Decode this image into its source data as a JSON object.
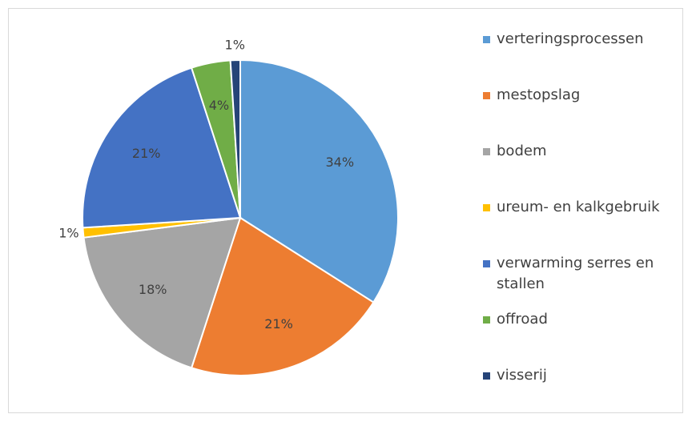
{
  "chart_data": {
    "type": "pie",
    "categories": [
      "verteringsprocessen",
      "mestopslag",
      "bodem",
      "ureum- en kalkgebruik",
      "verwarming serres en stallen",
      "offroad",
      "visserij"
    ],
    "values": [
      34,
      21,
      18,
      1,
      21,
      4,
      1
    ],
    "value_labels": [
      "34%",
      "21%",
      "18%",
      "1%",
      "21%",
      "4%",
      "1%"
    ],
    "colors": [
      "#5b9bd5",
      "#ed7d31",
      "#a5a5a5",
      "#ffc000",
      "#4472c4",
      "#70ad47",
      "#264478"
    ],
    "legend": "right"
  }
}
